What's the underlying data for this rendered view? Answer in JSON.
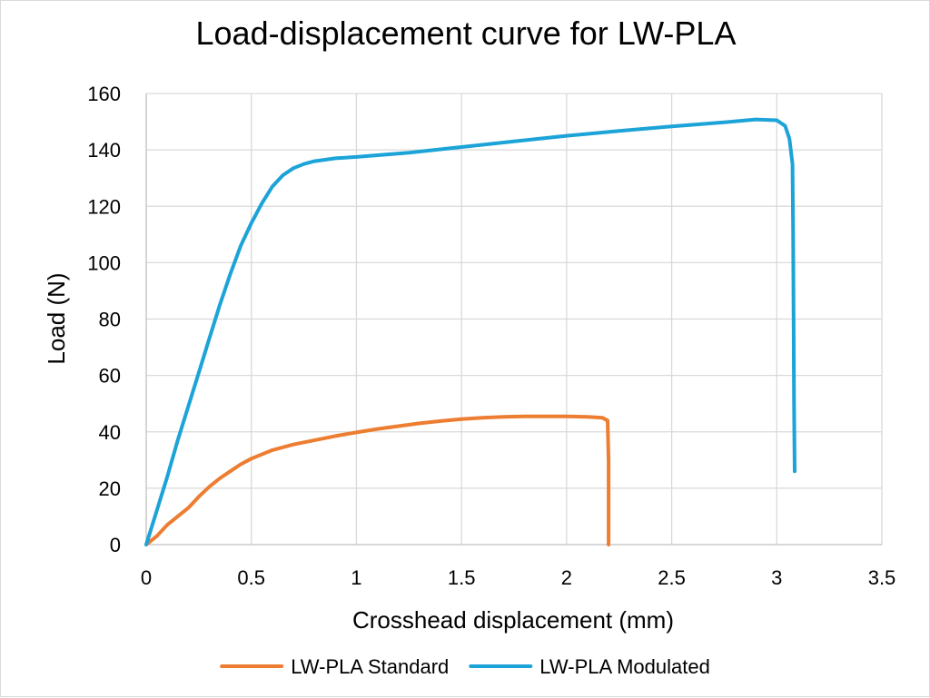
{
  "chart_data": {
    "type": "line",
    "title": "Load-displacement curve for LW-PLA",
    "xlabel": "Crosshead displacement (mm)",
    "ylabel": "Load (N)",
    "xlim": [
      0,
      3.5
    ],
    "ylim": [
      0,
      160
    ],
    "xticks": [
      0,
      0.5,
      1,
      1.5,
      2,
      2.5,
      3,
      3.5
    ],
    "yticks": [
      0,
      20,
      40,
      60,
      80,
      100,
      120,
      140,
      160
    ],
    "xtick_labels": [
      "0",
      "0.5",
      "1",
      "1.5",
      "2",
      "2.5",
      "3",
      "3.5"
    ],
    "ytick_labels": [
      "0",
      "20",
      "40",
      "60",
      "80",
      "100",
      "120",
      "140",
      "160"
    ],
    "grid": true,
    "legend_position": "bottom",
    "series": [
      {
        "name": "LW-PLA Standard",
        "color": "#ED7D31",
        "points": [
          [
            0,
            0
          ],
          [
            0.05,
            3
          ],
          [
            0.1,
            7
          ],
          [
            0.15,
            10
          ],
          [
            0.2,
            13
          ],
          [
            0.25,
            17
          ],
          [
            0.3,
            20.5
          ],
          [
            0.35,
            23.5
          ],
          [
            0.4,
            26
          ],
          [
            0.45,
            28.5
          ],
          [
            0.5,
            30.5
          ],
          [
            0.6,
            33.5
          ],
          [
            0.7,
            35.5
          ],
          [
            0.8,
            37
          ],
          [
            0.9,
            38.5
          ],
          [
            1.0,
            39.8
          ],
          [
            1.1,
            41
          ],
          [
            1.2,
            42
          ],
          [
            1.3,
            43
          ],
          [
            1.4,
            43.8
          ],
          [
            1.5,
            44.5
          ],
          [
            1.6,
            45
          ],
          [
            1.7,
            45.3
          ],
          [
            1.8,
            45.5
          ],
          [
            1.9,
            45.5
          ],
          [
            2.0,
            45.5
          ],
          [
            2.1,
            45.3
          ],
          [
            2.17,
            45
          ],
          [
            2.195,
            44
          ],
          [
            2.2,
            30
          ],
          [
            2.2,
            15
          ],
          [
            2.2,
            0
          ]
        ]
      },
      {
        "name": "LW-PLA Modulated",
        "color": "#1CA3D8",
        "points": [
          [
            0,
            0
          ],
          [
            0.05,
            12
          ],
          [
            0.1,
            24
          ],
          [
            0.15,
            37
          ],
          [
            0.2,
            49
          ],
          [
            0.25,
            61
          ],
          [
            0.3,
            73
          ],
          [
            0.35,
            85
          ],
          [
            0.4,
            96
          ],
          [
            0.45,
            106
          ],
          [
            0.5,
            114
          ],
          [
            0.55,
            121
          ],
          [
            0.6,
            127
          ],
          [
            0.65,
            131
          ],
          [
            0.7,
            133.5
          ],
          [
            0.75,
            135
          ],
          [
            0.8,
            136
          ],
          [
            0.9,
            137
          ],
          [
            1.0,
            137.5
          ],
          [
            1.25,
            139
          ],
          [
            1.5,
            141
          ],
          [
            1.75,
            143
          ],
          [
            2.0,
            145
          ],
          [
            2.25,
            146.7
          ],
          [
            2.5,
            148.3
          ],
          [
            2.75,
            149.8
          ],
          [
            2.9,
            150.8
          ],
          [
            3.0,
            150.5
          ],
          [
            3.04,
            148.5
          ],
          [
            3.06,
            144
          ],
          [
            3.075,
            135
          ],
          [
            3.078,
            110
          ],
          [
            3.08,
            80
          ],
          [
            3.082,
            50
          ],
          [
            3.085,
            26
          ]
        ]
      }
    ]
  }
}
